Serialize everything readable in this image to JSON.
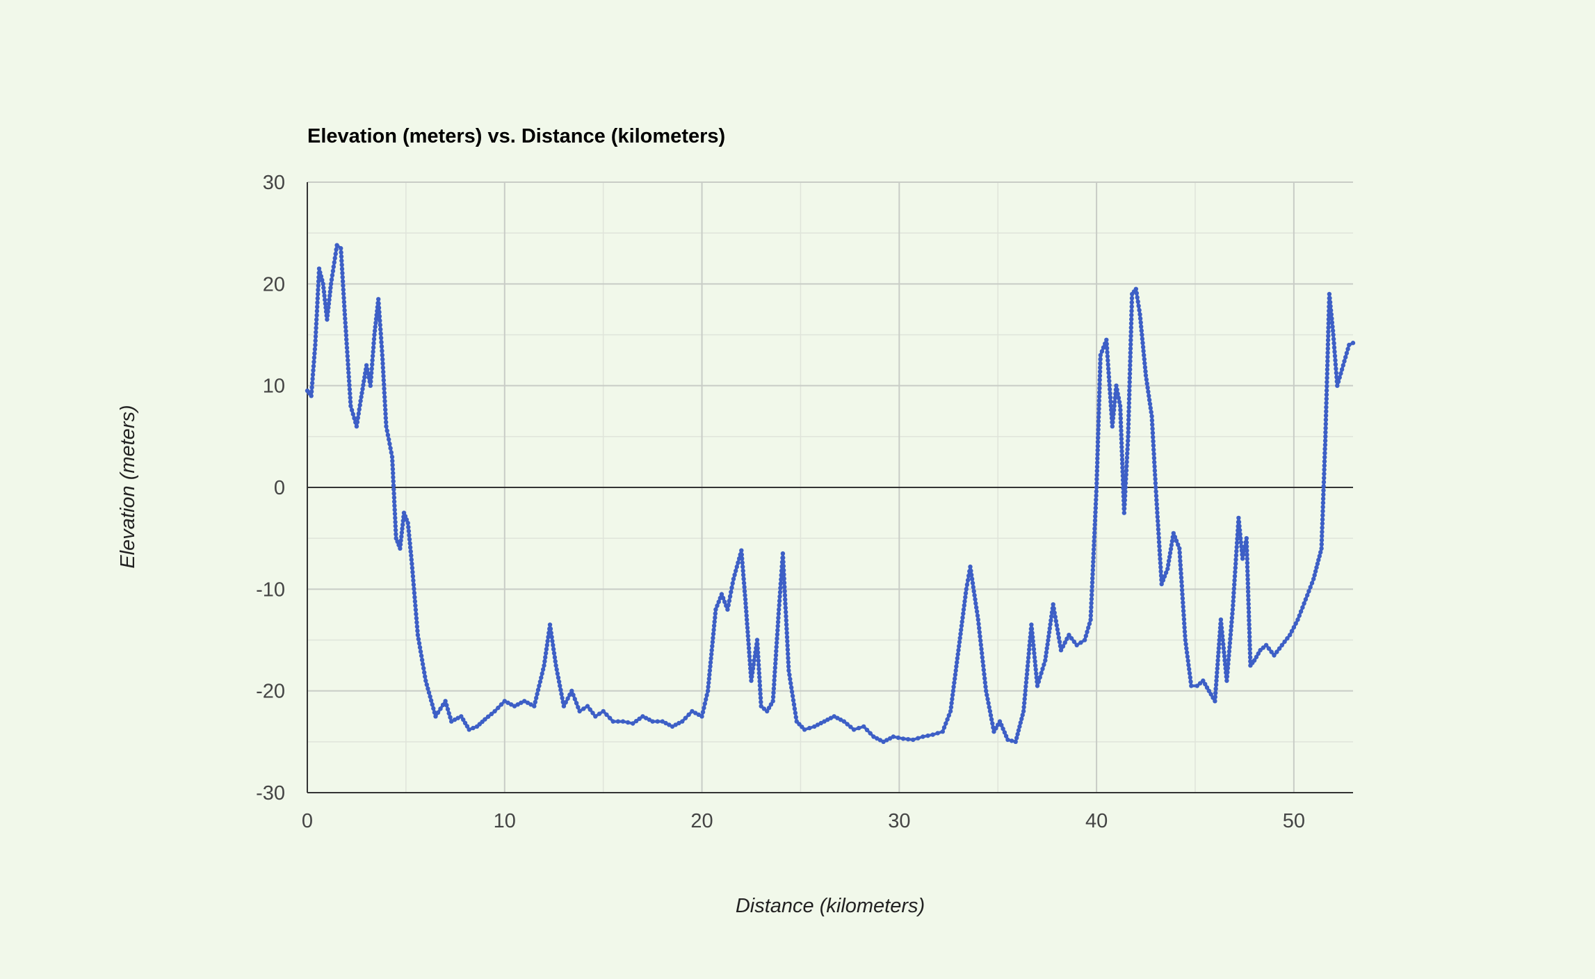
{
  "chart_data": {
    "type": "line",
    "title": "Elevation (meters) vs. Distance (kilometers)",
    "xlabel": "Distance (kilometers)",
    "ylabel": "Elevation (meters)",
    "xlim": [
      0,
      53
    ],
    "ylim": [
      -30,
      30
    ],
    "x_ticks": [
      0,
      10,
      20,
      30,
      40,
      50
    ],
    "y_ticks": [
      30,
      20,
      10,
      0,
      -10,
      -20,
      -30
    ],
    "grid": true,
    "legend": "none",
    "colors": {
      "background": "#f1f8ea",
      "line": "#3d5fc6",
      "major_grid": "#c8ccc6",
      "minor_grid": "#dfe4da",
      "zero_line": "#333333",
      "axis": "#333333"
    },
    "series": [
      {
        "x": [
          0,
          0.2,
          0.4,
          0.6,
          0.8,
          1.0,
          1.2,
          1.5,
          1.7,
          1.9,
          2.2,
          2.5,
          2.7,
          3.0,
          3.2,
          3.4,
          3.6,
          3.8,
          4.0,
          4.3,
          4.5,
          4.7,
          4.9,
          5.1,
          5.3,
          5.6,
          6.0,
          6.5,
          7.0,
          7.3,
          7.8,
          8.2,
          8.6,
          9.0,
          9.5,
          10.0,
          10.5,
          11.0,
          11.5,
          12.0,
          12.3,
          12.6,
          13.0,
          13.4,
          13.8,
          14.2,
          14.6,
          15.0,
          15.5,
          16.0,
          16.5,
          17.0,
          17.5,
          18.0,
          18.5,
          19.0,
          19.5,
          20.0,
          20.3,
          20.7,
          21.0,
          21.3,
          21.6,
          22.0,
          22.2,
          22.5,
          22.8,
          23.0,
          23.3,
          23.6,
          23.9,
          24.1,
          24.4,
          24.8,
          25.2,
          25.7,
          26.2,
          26.7,
          27.2,
          27.7,
          28.2,
          28.7,
          29.2,
          29.7,
          30.2,
          30.7,
          31.2,
          31.7,
          32.2,
          32.6,
          33.0,
          33.4,
          33.6,
          34.0,
          34.4,
          34.8,
          35.1,
          35.5,
          35.9,
          36.3,
          36.7,
          37.0,
          37.4,
          37.8,
          38.2,
          38.6,
          39.0,
          39.4,
          39.7,
          40.0,
          40.2,
          40.5,
          40.8,
          41.0,
          41.2,
          41.4,
          41.6,
          41.8,
          42.0,
          42.2,
          42.5,
          42.8,
          43.0,
          43.3,
          43.6,
          43.9,
          44.2,
          44.5,
          44.8,
          45.1,
          45.4,
          45.7,
          46.0,
          46.3,
          46.6,
          46.9,
          47.2,
          47.4,
          47.6,
          47.8,
          48.0,
          48.3,
          48.6,
          49.0,
          49.4,
          49.8,
          50.2,
          50.6,
          51.0,
          51.4,
          51.6,
          51.8,
          52.0,
          52.2,
          52.5,
          52.8,
          53.0
        ],
        "values": [
          9.5,
          9.0,
          14.0,
          21.5,
          20.0,
          16.5,
          20.0,
          23.8,
          23.5,
          17.0,
          8.0,
          6.0,
          8.5,
          12.0,
          10.0,
          15.0,
          18.5,
          13.0,
          6.0,
          3.0,
          -5.0,
          -6.0,
          -2.5,
          -3.5,
          -7.5,
          -14.5,
          -19.0,
          -22.5,
          -21.0,
          -23.0,
          -22.5,
          -23.8,
          -23.5,
          -22.8,
          -22.0,
          -21.0,
          -21.5,
          -21.0,
          -21.5,
          -17.5,
          -13.5,
          -17.5,
          -21.5,
          -20.0,
          -22.0,
          -21.5,
          -22.5,
          -22.0,
          -23.0,
          -23.0,
          -23.2,
          -22.5,
          -23.0,
          -23.0,
          -23.5,
          -23.0,
          -22.0,
          -22.5,
          -20.0,
          -12.0,
          -10.5,
          -12.0,
          -9.0,
          -6.2,
          -11.0,
          -19.0,
          -15.0,
          -21.5,
          -22.0,
          -21.0,
          -12.0,
          -6.5,
          -18.0,
          -23.0,
          -23.8,
          -23.5,
          -23.0,
          -22.5,
          -23.0,
          -23.8,
          -23.5,
          -24.5,
          -25.0,
          -24.5,
          -24.7,
          -24.8,
          -24.5,
          -24.3,
          -24.0,
          -22.0,
          -16.0,
          -10.0,
          -7.8,
          -13.0,
          -20.0,
          -24.0,
          -23.0,
          -24.8,
          -25.0,
          -22.0,
          -13.5,
          -19.5,
          -17.0,
          -11.5,
          -16.0,
          -14.5,
          -15.5,
          -15.0,
          -13.0,
          0.0,
          13.0,
          14.5,
          6.0,
          10.0,
          8.0,
          -2.5,
          5.0,
          19.0,
          19.5,
          17.0,
          11.0,
          7.0,
          0.0,
          -9.5,
          -8.0,
          -4.5,
          -6.0,
          -15.0,
          -19.5,
          -19.5,
          -19.0,
          -20.0,
          -21.0,
          -13.0,
          -19.0,
          -12.0,
          -3.0,
          -7.0,
          -5.0,
          -17.5,
          -17.0,
          -16.0,
          -15.5,
          -16.5,
          -15.5,
          -14.5,
          -13.0,
          -11.0,
          -9.0,
          -6.0,
          5.0,
          19.0,
          15.0,
          10.0,
          12.0,
          14.0,
          14.2
        ]
      }
    ]
  }
}
